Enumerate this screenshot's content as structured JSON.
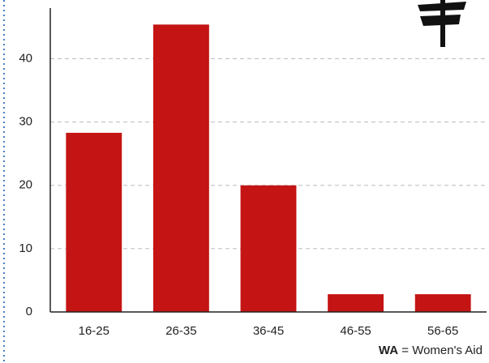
{
  "chart_data": {
    "type": "bar",
    "categories": [
      "16-25",
      "26-35",
      "36-45",
      "46-55",
      "56-65"
    ],
    "values": [
      28.3,
      45.4,
      20,
      2.8,
      2.8
    ],
    "color": "#c41414",
    "ylim": [
      0,
      48
    ],
    "yticks": [
      0,
      10,
      20,
      30,
      40
    ],
    "grid": true,
    "footnote": {
      "abbr": "WA",
      "text": "= Women's Aid"
    }
  }
}
